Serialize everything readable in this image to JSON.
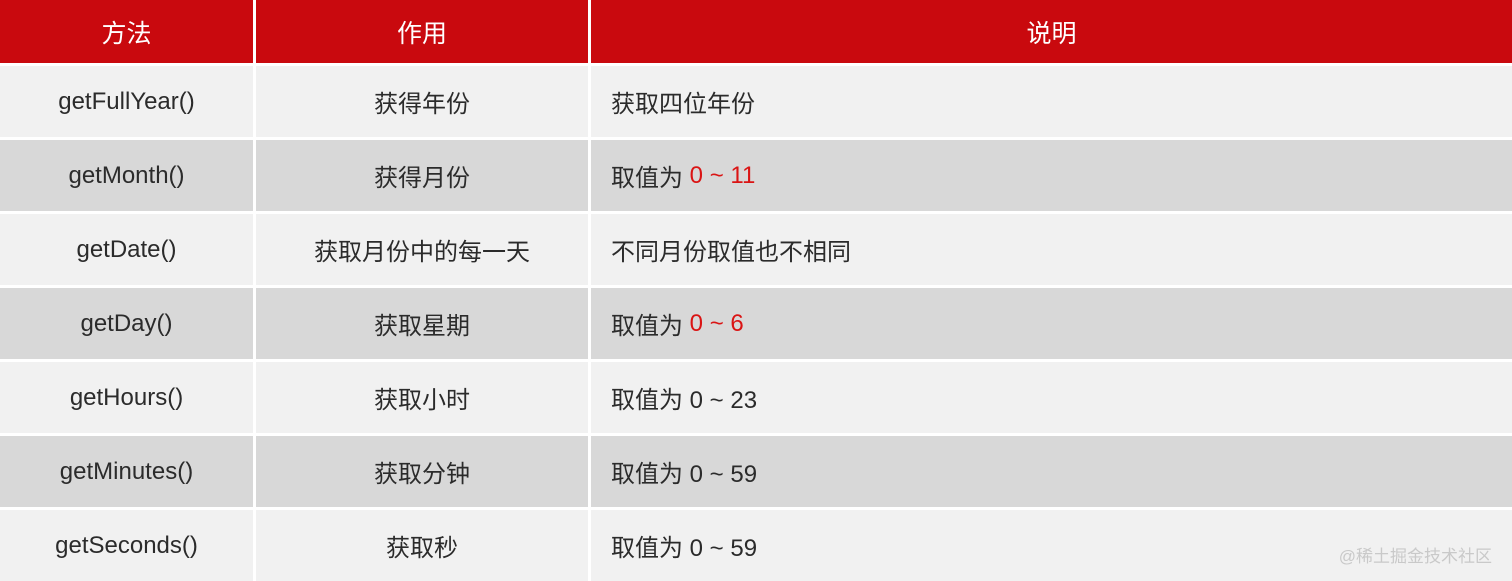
{
  "table": {
    "headers": [
      "方法",
      "作用",
      "说明"
    ],
    "rows": [
      {
        "method": "getFullYear()",
        "action": "获得年份",
        "desc": "获取四位年份",
        "highlight": ""
      },
      {
        "method": "getMonth()",
        "action": "获得月份",
        "desc": "取值为 ",
        "highlight": "0 ~ 11"
      },
      {
        "method": "getDate()",
        "action": "获取月份中的每一天",
        "desc": "不同月份取值也不相同",
        "highlight": ""
      },
      {
        "method": "getDay()",
        "action": "获取星期",
        "desc": "取值为 ",
        "highlight": "0 ~ 6"
      },
      {
        "method": "getHours()",
        "action": "获取小时",
        "desc": "取值为 0 ~ 23",
        "highlight": ""
      },
      {
        "method": "getMinutes()",
        "action": "获取分钟",
        "desc": "取值为 0 ~ 59",
        "highlight": ""
      },
      {
        "method": "getSeconds()",
        "action": "获取秒",
        "desc": "取值为 0 ~ 59",
        "highlight": ""
      }
    ]
  },
  "watermark": "@稀土掘金技术社区",
  "colors": {
    "header_bg": "#C9090E",
    "row_light": "#F1F1F1",
    "row_dark": "#D8D8D8",
    "highlight_red": "#DA1414",
    "text": "#2B2B2B",
    "watermark": "#C9C9C9"
  }
}
